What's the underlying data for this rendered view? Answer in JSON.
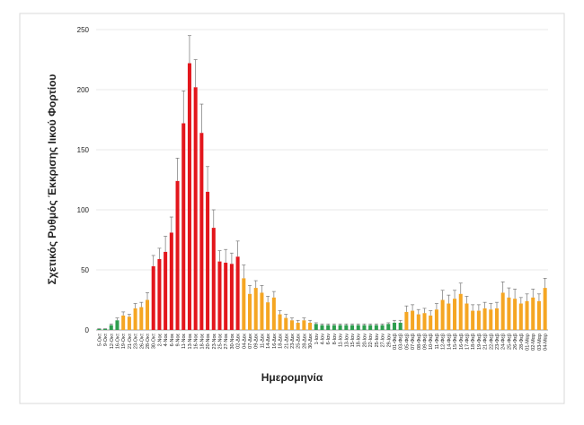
{
  "chart_data": {
    "type": "bar",
    "x_label": "Ημερομηνία",
    "y_label": "Σχετικός Ρυθμός Έκκρισης Ιικού Φορτίου",
    "categories": [
      "5-Οκτ",
      "9-Οκτ",
      "12-Οκτ",
      "16-Οκτ",
      "19-Οκτ",
      "21-Οκτ",
      "23-Οκτ",
      "26-Οκτ",
      "28-Οκτ",
      "30-Οκτ",
      "2-Νοε",
      "4-Νοε",
      "6-Νοε",
      "9-Νοε",
      "11-Νοε",
      "13-Νοε",
      "16-Νοε",
      "18-Νοε",
      "20-Νοε",
      "23-Νοε",
      "25-Νοε",
      "27-Νοε",
      "30-Νοε",
      "02-Δεκ",
      "04-Δεκ",
      "07-Δεκ",
      "09-Δεκ",
      "11-Δεκ",
      "14-Δεκ",
      "16-Δεκ",
      "18-Δεκ",
      "21-Δεκ",
      "23-Δεκ",
      "25-Δεκ",
      "28-Δεκ",
      "30-Δεκ",
      "1-Ιαν",
      "4-Ιαν",
      "6-Ιαν",
      "8-Ιαν",
      "11-Ιαν",
      "13-Ιαν",
      "15-Ιαν",
      "18-Ιαν",
      "20-Ιαν",
      "22-Ιαν",
      "25-Ιαν",
      "27-Ιαν",
      "29-Ιαν",
      "01-Φεβ",
      "03-Φεβ",
      "05-Φεβ",
      "07-Φεβ",
      "08-Φεβ",
      "09-Φεβ",
      "10-Φεβ",
      "11-Φεβ",
      "12-Φεβ",
      "14-Φεβ",
      "15-Φεβ",
      "16-Φεβ",
      "17-Φεβ",
      "18-Φεβ",
      "19-Φεβ",
      "21-Φεβ",
      "22-Φεβ",
      "23-Φεβ",
      "24-Φεβ",
      "25-Φεβ",
      "26-Φεβ",
      "28-Φεβ",
      "01-Μαρ",
      "02-Μαρ",
      "03-Μαρ",
      "04-Μαρ"
    ],
    "values": [
      1,
      1,
      4,
      8,
      12,
      11,
      18,
      19,
      25,
      53,
      59,
      65,
      81,
      124,
      172,
      222,
      202,
      164,
      115,
      85,
      57,
      56,
      55,
      61,
      43,
      30,
      35,
      31,
      23,
      27,
      13,
      10,
      8,
      6,
      8,
      6,
      5,
      4,
      4,
      4,
      4,
      4,
      4,
      4,
      4,
      4,
      4,
      4,
      5,
      6,
      6,
      15,
      16,
      13,
      14,
      12,
      17,
      25,
      22,
      26,
      30,
      22,
      16,
      16,
      18,
      17,
      18,
      31,
      27,
      26,
      22,
      24,
      27,
      24,
      35
    ],
    "errors": [
      0,
      0,
      1,
      2,
      3,
      2,
      4,
      4,
      6,
      9,
      9,
      13,
      13,
      19,
      27,
      23,
      23,
      24,
      21,
      15,
      9,
      11,
      9,
      13,
      11,
      7,
      6,
      6,
      5,
      5,
      3,
      3,
      2,
      2,
      2,
      2,
      1,
      1,
      1,
      1,
      1,
      1,
      1,
      1,
      1,
      1,
      1,
      1,
      1,
      2,
      2,
      5,
      5,
      4,
      4,
      4,
      5,
      8,
      7,
      7,
      9,
      6,
      5,
      5,
      5,
      5,
      5,
      9,
      8,
      8,
      5,
      6,
      7,
      6,
      8
    ],
    "colors": [
      "#2e9e4f",
      "#2e9e4f",
      "#2e9e4f",
      "#2e9e4f",
      "#f5a623",
      "#f5a623",
      "#f5a623",
      "#f5a623",
      "#f5a623",
      "#e3161c",
      "#e3161c",
      "#e3161c",
      "#e3161c",
      "#e3161c",
      "#e3161c",
      "#e3161c",
      "#e3161c",
      "#e3161c",
      "#e3161c",
      "#e3161c",
      "#e3161c",
      "#e3161c",
      "#e3161c",
      "#e3161c",
      "#f5a623",
      "#f5a623",
      "#f5a623",
      "#f5a623",
      "#f5a623",
      "#f5a623",
      "#f5a623",
      "#f5a623",
      "#f5a623",
      "#f5a623",
      "#f5a623",
      "#f5a623",
      "#2e9e4f",
      "#2e9e4f",
      "#2e9e4f",
      "#2e9e4f",
      "#2e9e4f",
      "#2e9e4f",
      "#2e9e4f",
      "#2e9e4f",
      "#2e9e4f",
      "#2e9e4f",
      "#2e9e4f",
      "#2e9e4f",
      "#2e9e4f",
      "#2e9e4f",
      "#2e9e4f",
      "#f5a623",
      "#f5a623",
      "#f5a623",
      "#f5a623",
      "#f5a623",
      "#f5a623",
      "#f5a623",
      "#f5a623",
      "#f5a623",
      "#f5a623",
      "#f5a623",
      "#f5a623",
      "#f5a623",
      "#f5a623",
      "#f5a623",
      "#f5a623",
      "#f5a623",
      "#f5a623",
      "#f5a623",
      "#f5a623",
      "#f5a623",
      "#f5a623",
      "#f5a623",
      "#f5a623"
    ],
    "ylim": [
      0,
      250
    ],
    "yticks": [
      0,
      50,
      100,
      150,
      200,
      250
    ],
    "grid": true
  }
}
